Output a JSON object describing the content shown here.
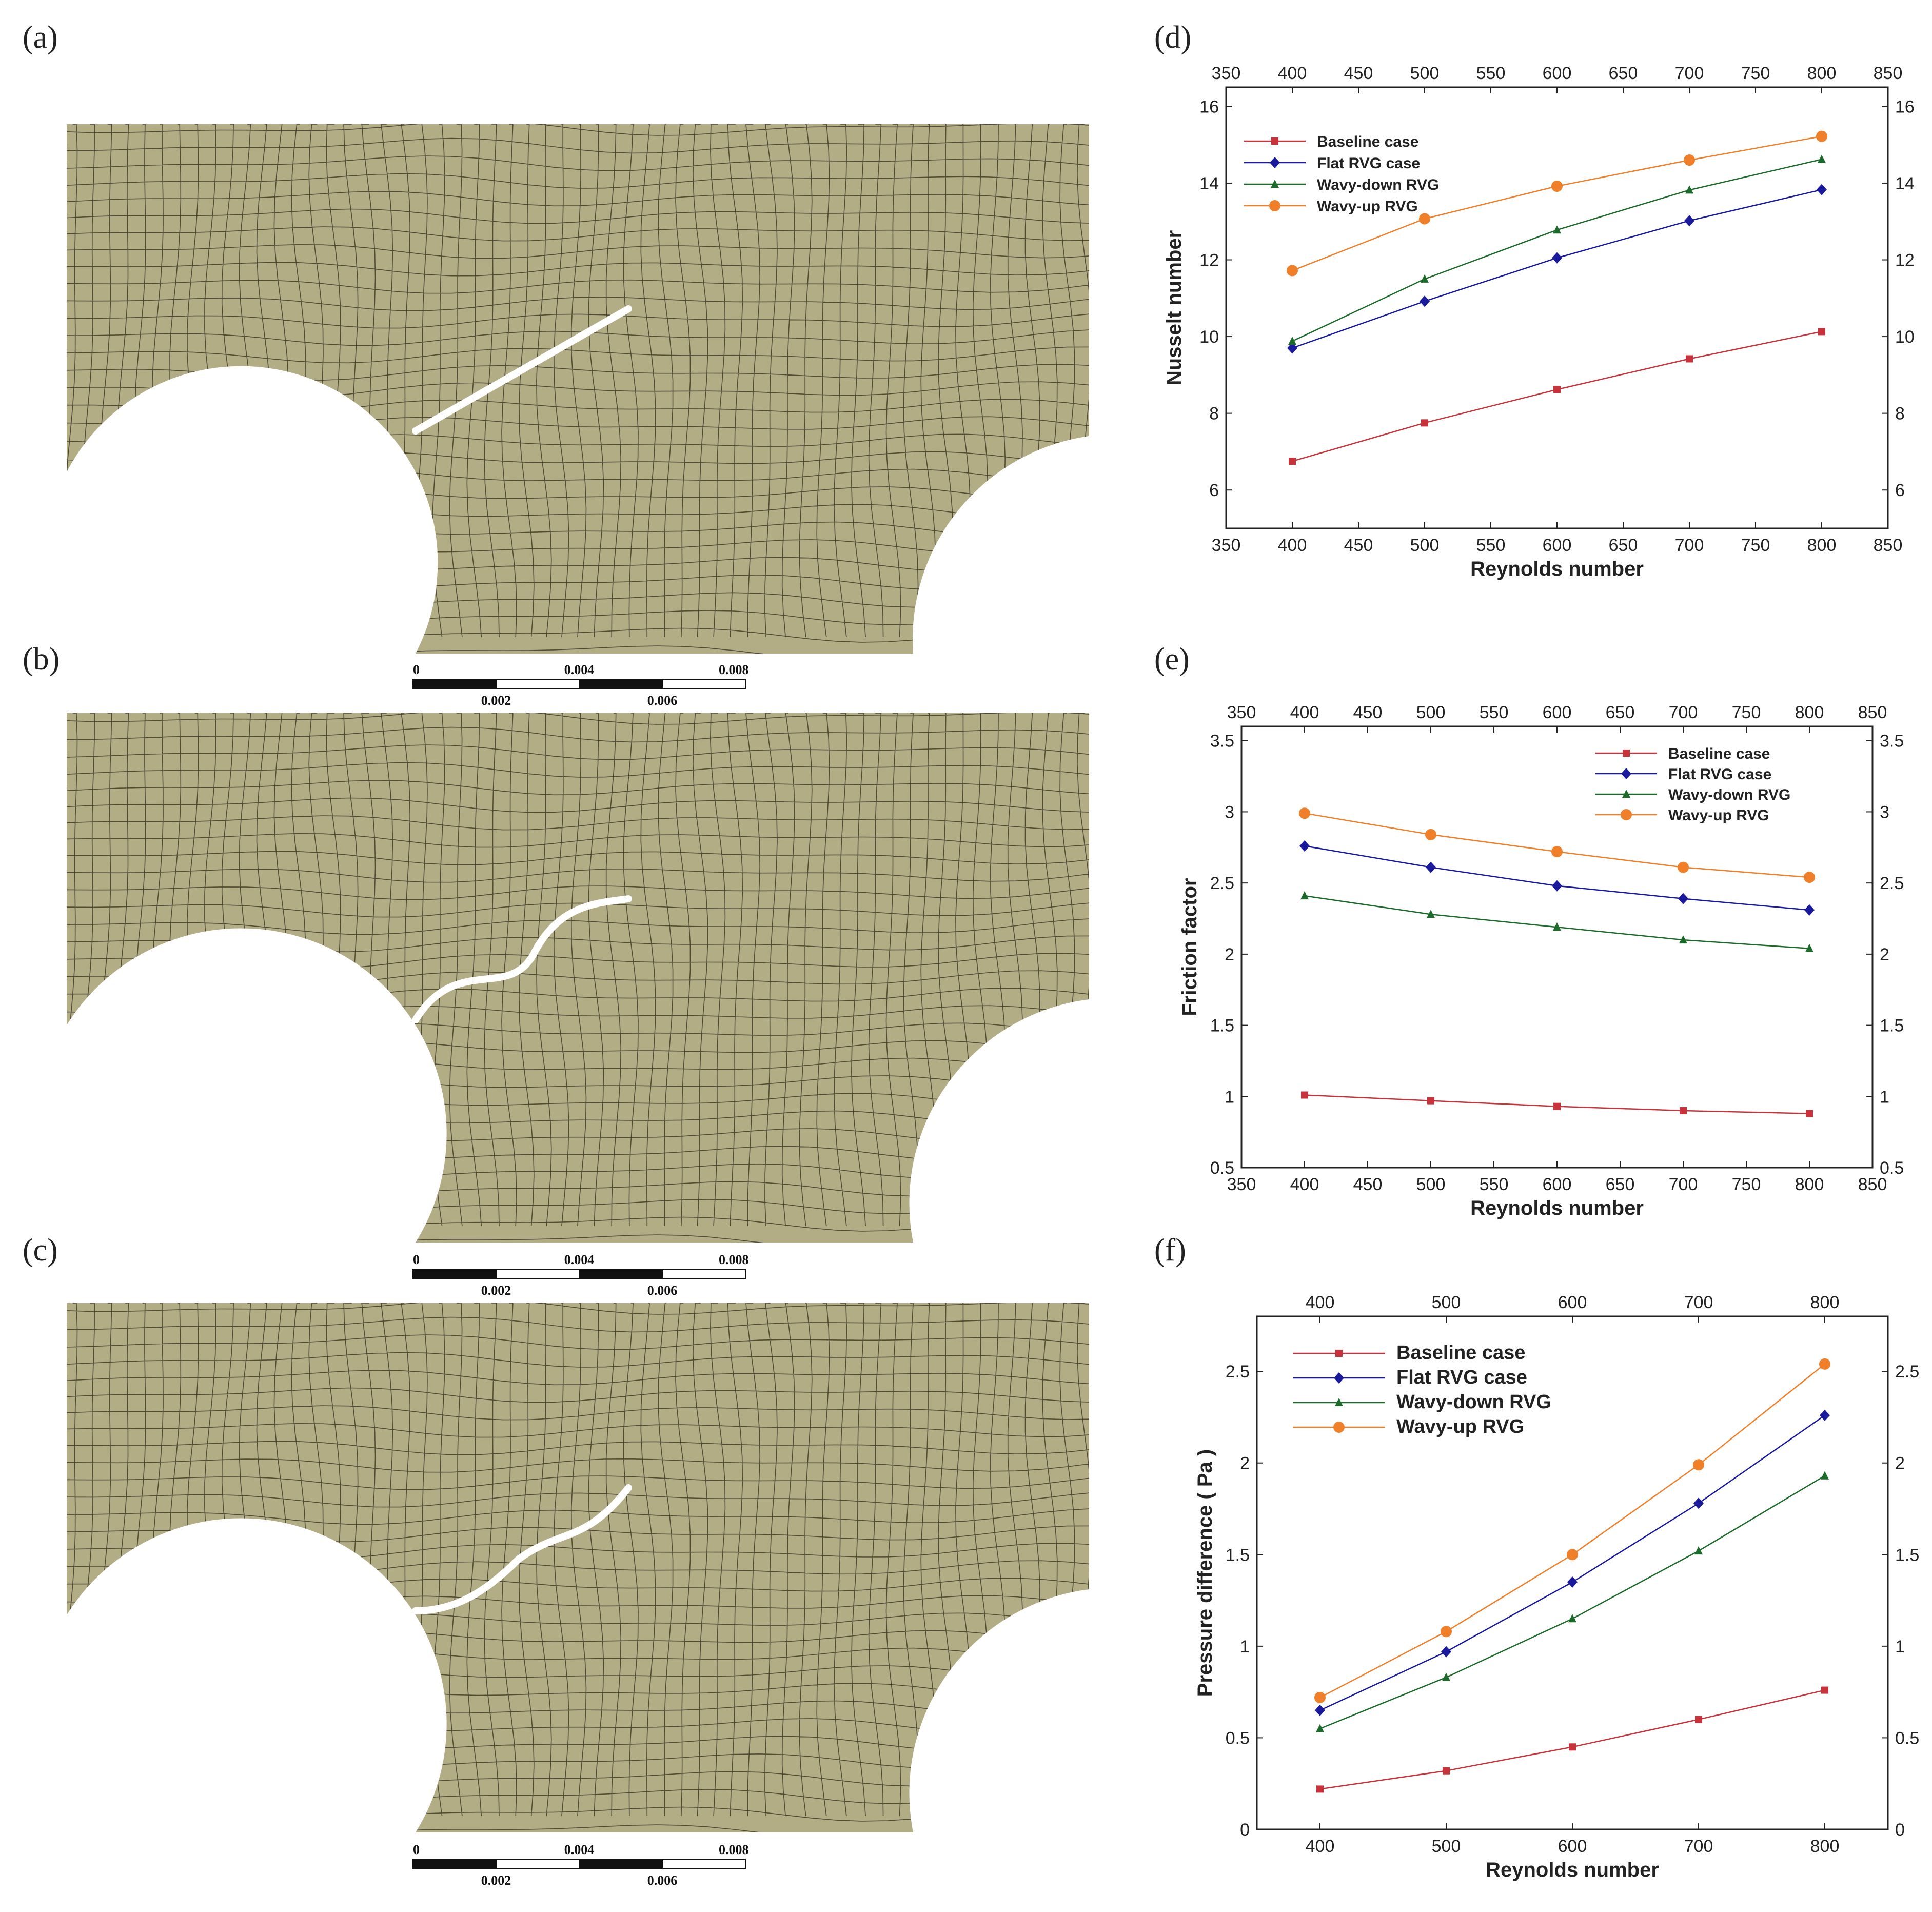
{
  "panels": {
    "a": "(a)",
    "b": "(b)",
    "c": "(c)",
    "d": "(d)",
    "e": "(e)",
    "f": "(f)"
  },
  "scale_bar": {
    "top_labels": [
      "0",
      "0.004",
      "0.008 (m)"
    ],
    "bottom_labels": [
      "0.002",
      "0.006"
    ]
  },
  "colors": {
    "baseline": "#c8323a",
    "flat": "#1a1a9c",
    "wavy_down": "#1c6b2a",
    "wavy_up": "#f07f2a",
    "mesh_fill": "#b3ad86",
    "mesh_line": "#3d3a28",
    "vg": "#ffffff"
  },
  "chart_data": [
    {
      "type": "line",
      "panel": "(d)",
      "xlabel": "Reynolds number",
      "ylabel": "Nusselt number",
      "xlim": [
        350,
        850
      ],
      "ylim": [
        5,
        16.5
      ],
      "xticks": [
        350,
        400,
        450,
        500,
        550,
        600,
        650,
        700,
        750,
        800,
        850
      ],
      "yticks": [
        6,
        8,
        10,
        12,
        14,
        16
      ],
      "x": [
        400,
        500,
        600,
        700,
        800
      ],
      "legend_position": "top-left",
      "series": [
        {
          "name": "Baseline case",
          "marker": "square",
          "values": [
            6.75,
            7.75,
            8.62,
            9.42,
            10.13
          ]
        },
        {
          "name": "Flat RVG case",
          "marker": "diamond",
          "values": [
            9.7,
            10.92,
            12.05,
            13.02,
            13.83
          ]
        },
        {
          "name": "Wavy-down RVG",
          "marker": "triangle",
          "values": [
            9.88,
            11.5,
            12.78,
            13.82,
            14.62
          ]
        },
        {
          "name": "Wavy-up RVG",
          "marker": "circle",
          "values": [
            11.72,
            13.07,
            13.92,
            14.6,
            15.22
          ]
        }
      ]
    },
    {
      "type": "line",
      "panel": "(e)",
      "xlabel": "Reynolds number",
      "ylabel": "Friction factor",
      "xlim": [
        350,
        850
      ],
      "ylim": [
        0.5,
        3.6
      ],
      "xticks": [
        350,
        400,
        450,
        500,
        550,
        600,
        650,
        700,
        750,
        800,
        850
      ],
      "yticks": [
        0.5,
        1,
        1.5,
        2,
        2.5,
        3,
        3.5
      ],
      "x": [
        400,
        500,
        600,
        700,
        800
      ],
      "legend_position": "top-right",
      "series": [
        {
          "name": "Baseline case",
          "marker": "square",
          "values": [
            1.01,
            0.97,
            0.93,
            0.9,
            0.88
          ]
        },
        {
          "name": "Flat RVG case",
          "marker": "diamond",
          "values": [
            2.76,
            2.61,
            2.48,
            2.39,
            2.31
          ]
        },
        {
          "name": "Wavy-down RVG",
          "marker": "triangle",
          "values": [
            2.41,
            2.28,
            2.19,
            2.1,
            2.04
          ]
        },
        {
          "name": "Wavy-up RVG",
          "marker": "circle",
          "values": [
            2.99,
            2.84,
            2.72,
            2.61,
            2.54
          ]
        }
      ]
    },
    {
      "type": "line",
      "panel": "(f)",
      "xlabel": "Reynolds number",
      "ylabel": "Pressure difference ( Pa )",
      "xlim": [
        350,
        850
      ],
      "ylim": [
        0,
        2.8
      ],
      "xticks": [
        400,
        500,
        600,
        700,
        800
      ],
      "yticks": [
        0,
        0.5,
        1,
        1.5,
        2,
        2.5
      ],
      "x": [
        400,
        500,
        600,
        700,
        800
      ],
      "legend_position": "top-left",
      "series": [
        {
          "name": "Baseline case",
          "marker": "square",
          "values": [
            0.22,
            0.32,
            0.45,
            0.6,
            0.76
          ]
        },
        {
          "name": "Flat RVG case",
          "marker": "diamond",
          "values": [
            0.65,
            0.97,
            1.35,
            1.78,
            2.26
          ]
        },
        {
          "name": "Wavy-down RVG",
          "marker": "triangle",
          "values": [
            0.55,
            0.83,
            1.15,
            1.52,
            1.93
          ]
        },
        {
          "name": "Wavy-up RVG",
          "marker": "circle",
          "values": [
            0.72,
            1.08,
            1.5,
            1.99,
            2.54
          ]
        }
      ]
    }
  ]
}
